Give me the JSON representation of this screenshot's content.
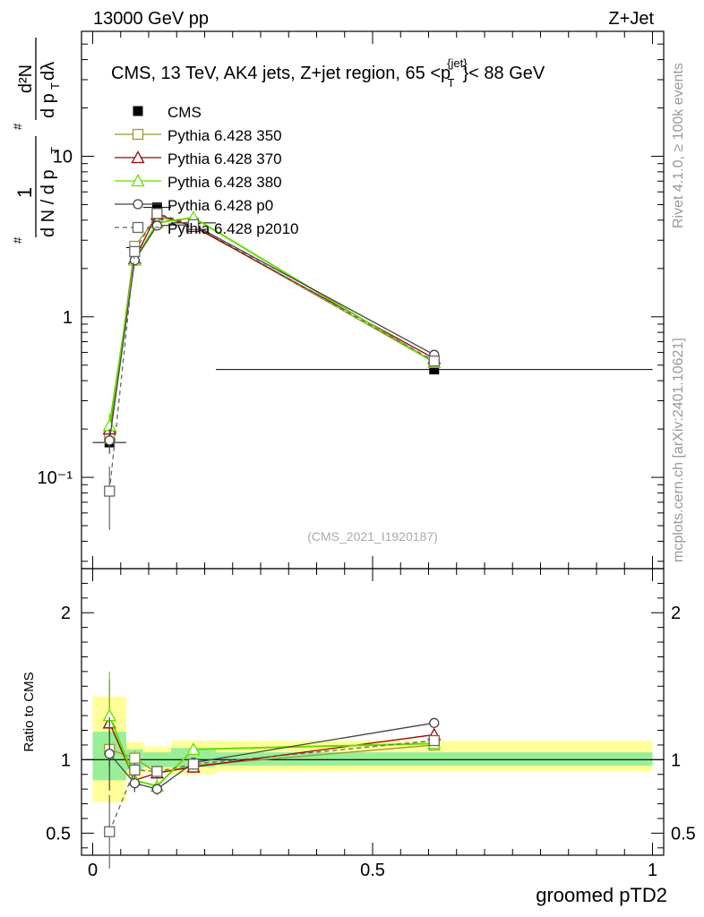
{
  "header": {
    "energy": "13000 GeV pp",
    "process": "Z+Jet"
  },
  "side_labels": {
    "rivet": "Rivet 4.1.0, ≥ 100k events",
    "mcplots": "mcplots.cern.ch [arXiv:2401.10621]"
  },
  "chart_data": [
    {
      "type": "line",
      "panel": "main",
      "title": "CMS, 13 TeV, AK4 jets, Z+jet region, 65 <p",
      "title_sup": "{jet}",
      "title_sub": "T",
      "title_tail": "}< 88 GeV",
      "watermark": "(CMS_2021_I1920187)",
      "ylabel": {
        "frac_num": "1",
        "frac_den_a": "d N / d p",
        "frac_den_sub": "T",
        "frac2_num": "d²N",
        "frac2_den_a": "d p",
        "frac2_den_sub": "T",
        "frac2_den_b": " dλ",
        "hash": "#"
      },
      "yscale": "log",
      "ylim": [
        0.027,
        60
      ],
      "xlim": [
        -0.02,
        1.02
      ],
      "y_tick_labels": [
        "10⁻¹",
        "1",
        "10"
      ],
      "x": [
        0.03,
        0.075,
        0.115,
        0.18,
        0.61
      ],
      "cms": {
        "name": "CMS",
        "values": [
          0.165,
          2.7,
          4.8,
          3.85,
          0.47
        ],
        "x_bins": [
          [
            0.0,
            0.06
          ],
          [
            0.06,
            0.09
          ],
          [
            0.09,
            0.14
          ],
          [
            0.14,
            0.22
          ],
          [
            0.22,
            1.0
          ]
        ]
      },
      "legend_position": "top-left",
      "series": [
        {
          "name": "Pythia 6.428 350",
          "color": "#999933",
          "marker": "square-open",
          "values": [
            0.175,
            2.75,
            4.2,
            3.7,
            0.52
          ],
          "errors": [
            0.02,
            0.1,
            0.15,
            0.1,
            0.02
          ]
        },
        {
          "name": "Pythia 6.428 370",
          "color": "#990000",
          "marker": "triangle-open",
          "values": [
            0.2,
            2.3,
            4.35,
            3.65,
            0.55
          ],
          "errors": [
            0.04,
            0.12,
            0.15,
            0.1,
            0.02
          ]
        },
        {
          "name": "Pythia 6.428 380",
          "color": "#66dd00",
          "marker": "triangle-open",
          "values": [
            0.21,
            2.25,
            3.85,
            4.15,
            0.52
          ],
          "errors": [
            0.04,
            0.12,
            0.15,
            0.1,
            0.02
          ]
        },
        {
          "name": "Pythia 6.428 p0",
          "color": "#444444",
          "marker": "circle-open",
          "values": [
            0.17,
            2.25,
            3.7,
            3.75,
            0.58
          ],
          "errors": [
            0.03,
            0.12,
            0.15,
            0.1,
            0.02
          ]
        },
        {
          "name": "Pythia 6.428 p2010",
          "color": "#666666",
          "marker": "square-open",
          "dashed": true,
          "values": [
            0.082,
            2.55,
            4.4,
            3.75,
            0.53
          ],
          "errors": [
            0.035,
            0.12,
            0.15,
            0.1,
            0.02
          ]
        }
      ]
    },
    {
      "type": "line",
      "panel": "ratio",
      "ylabel": "Ratio to CMS",
      "xlabel": "groomed pTD2",
      "ylim": [
        0.35,
        2.3
      ],
      "xlim": [
        -0.02,
        1.02
      ],
      "y_ticks": [
        0.5,
        1,
        2
      ],
      "y_tick_labels": [
        "0.5",
        "1",
        "2"
      ],
      "x_ticks": [
        0,
        0.5,
        1
      ],
      "x_tick_labels": [
        "0",
        "0.5",
        "1"
      ],
      "x": [
        0.03,
        0.075,
        0.115,
        0.18,
        0.61
      ],
      "bands": {
        "inner_color": "#99ee99",
        "outer_color": "#ffff99",
        "bins": [
          {
            "x0": 0.0,
            "x1": 0.06,
            "inner": [
              0.86,
              1.19
            ],
            "outer": [
              0.71,
              1.43
            ]
          },
          {
            "x0": 0.06,
            "x1": 0.09,
            "inner": [
              0.93,
              1.07
            ],
            "outer": [
              0.88,
              1.12
            ]
          },
          {
            "x0": 0.09,
            "x1": 0.14,
            "inner": [
              0.95,
              1.05
            ],
            "outer": [
              0.91,
              1.09
            ]
          },
          {
            "x0": 0.14,
            "x1": 0.22,
            "inner": [
              0.95,
              1.08
            ],
            "outer": [
              0.9,
              1.13
            ]
          },
          {
            "x0": 0.22,
            "x1": 1.0,
            "inner": [
              0.96,
              1.05
            ],
            "outer": [
              0.92,
              1.13
            ]
          }
        ]
      },
      "series": [
        {
          "name": "Pythia 6.428 350",
          "color": "#999933",
          "marker": "square-open",
          "values": [
            1.07,
            1.01,
            0.91,
            0.96,
            1.1
          ],
          "errors": [
            0.12,
            0.05,
            0.04,
            0.03,
            0.03
          ]
        },
        {
          "name": "Pythia 6.428 370",
          "color": "#990000",
          "marker": "triangle-open",
          "values": [
            1.25,
            0.86,
            0.91,
            0.95,
            1.17
          ],
          "errors": [
            0.3,
            0.06,
            0.04,
            0.03,
            0.03
          ]
        },
        {
          "name": "Pythia 6.428 380",
          "color": "#66dd00",
          "marker": "triangle-open",
          "values": [
            1.3,
            0.86,
            0.82,
            1.07,
            1.11
          ],
          "errors": [
            0.3,
            0.06,
            0.04,
            0.03,
            0.03
          ]
        },
        {
          "name": "Pythia 6.428 p0",
          "color": "#444444",
          "marker": "circle-open",
          "values": [
            1.04,
            0.84,
            0.8,
            0.98,
            1.25
          ],
          "errors": [
            0.25,
            0.06,
            0.04,
            0.03,
            0.03
          ]
        },
        {
          "name": "Pythia 6.428 p2010",
          "color": "#666666",
          "marker": "square-open",
          "dashed": true,
          "values": [
            0.51,
            0.93,
            0.92,
            0.97,
            1.13
          ],
          "errors": [
            0.25,
            0.05,
            0.04,
            0.03,
            0.03
          ]
        }
      ]
    }
  ]
}
